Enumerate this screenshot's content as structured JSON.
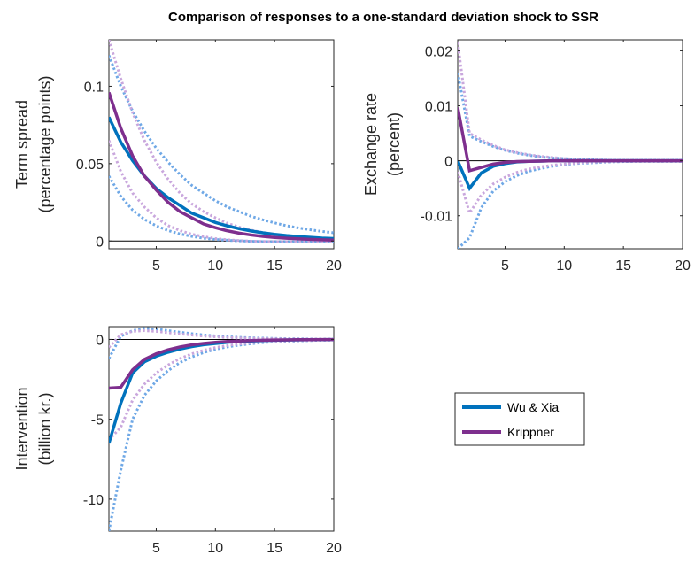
{
  "figure_title": "Comparison of responses to a one-standard deviation shock to SSR",
  "legend": [
    {
      "label": "Wu & Xia",
      "color": "#0072BD"
    },
    {
      "label": "Krippner",
      "color": "#7E2F8E"
    }
  ],
  "chart_data": [
    {
      "type": "line",
      "ylabel": [
        "Term spread",
        "(percentage points)"
      ],
      "xlim": [
        1,
        20
      ],
      "ylim": [
        -0.005,
        0.13
      ],
      "xticks": [
        5,
        10,
        15,
        20
      ],
      "yticks": [
        0,
        0.05,
        0.1
      ],
      "ytick_labels": [
        "0",
        "0.05",
        "0.1"
      ],
      "zero_line": true,
      "x": [
        1,
        2,
        3,
        4,
        5,
        6,
        7,
        8,
        9,
        10,
        11,
        12,
        13,
        14,
        15,
        16,
        17,
        18,
        19,
        20
      ],
      "series": [
        {
          "name": "Wu & Xia",
          "style": "solid",
          "color": "#0072BD",
          "values": [
            0.08,
            0.064,
            0.052,
            0.042,
            0.034,
            0.028,
            0.023,
            0.018,
            0.015,
            0.012,
            0.0098,
            0.008,
            0.0065,
            0.0053,
            0.0043,
            0.0035,
            0.0029,
            0.0024,
            0.0019,
            0.0016
          ]
        },
        {
          "name": "Krippner",
          "style": "solid",
          "color": "#7E2F8E",
          "values": [
            0.096,
            0.073,
            0.055,
            0.042,
            0.033,
            0.025,
            0.019,
            0.015,
            0.011,
            0.0086,
            0.0066,
            0.0051,
            0.0039,
            0.003,
            0.0023,
            0.0018,
            0.0014,
            0.0011,
            0.0008,
            0.0006
          ]
        },
        {
          "style": "dotted",
          "color": "#6FA8E6",
          "values": [
            0.12,
            0.1,
            0.084,
            0.071,
            0.06,
            0.051,
            0.043,
            0.036,
            0.031,
            0.026,
            0.022,
            0.019,
            0.016,
            0.0137,
            0.0117,
            0.0099,
            0.0085,
            0.0073,
            0.0062,
            0.0053
          ]
        },
        {
          "style": "dotted",
          "color": "#6FA8E6",
          "values": [
            0.042,
            0.029,
            0.02,
            0.014,
            0.0098,
            0.0068,
            0.0046,
            0.003,
            0.0018,
            0.001,
            0.0005,
            0.0001,
            -0.0002,
            -0.0004,
            -0.0005,
            -0.0005,
            -0.0005,
            -0.0005,
            -0.0005,
            -0.0005
          ]
        },
        {
          "style": "dotted",
          "color": "#C9A7DD",
          "values": [
            0.13,
            0.105,
            0.083,
            0.065,
            0.051,
            0.04,
            0.031,
            0.024,
            0.019,
            0.015,
            0.0115,
            0.009,
            0.007,
            0.0055,
            0.0043,
            0.0034,
            0.0027,
            0.0021,
            0.0017,
            0.0013
          ]
        },
        {
          "style": "dotted",
          "color": "#C9A7DD",
          "values": [
            0.065,
            0.045,
            0.031,
            0.022,
            0.015,
            0.01,
            0.0068,
            0.0044,
            0.0028,
            0.0016,
            0.0008,
            0.0003,
            -0.0001,
            -0.0003,
            -0.0004,
            -0.0004,
            -0.0004,
            -0.0004,
            -0.0004,
            -0.0004
          ]
        }
      ]
    },
    {
      "type": "line",
      "ylabel": [
        "Exchange rate",
        "(percent)"
      ],
      "xlim": [
        1,
        20
      ],
      "ylim": [
        -0.016,
        0.022
      ],
      "xticks": [
        5,
        10,
        15,
        20
      ],
      "yticks": [
        -0.01,
        0,
        0.01,
        0.02
      ],
      "ytick_labels": [
        "-0.01",
        "0",
        "0.01",
        "0.02"
      ],
      "zero_line": true,
      "x": [
        1,
        2,
        3,
        4,
        5,
        6,
        7,
        8,
        9,
        10,
        11,
        12,
        13,
        14,
        15,
        16,
        17,
        18,
        19,
        20
      ],
      "series": [
        {
          "name": "Wu & Xia",
          "style": "solid",
          "color": "#0072BD",
          "values": [
            0,
            -0.005,
            -0.0022,
            -0.001,
            -0.0005,
            -0.0002,
            -0.0001,
            -5e-05,
            0,
            0,
            0,
            0,
            0,
            0,
            0,
            0,
            0,
            0,
            0,
            0
          ]
        },
        {
          "name": "Krippner",
          "style": "solid",
          "color": "#7E2F8E",
          "values": [
            0.0097,
            -0.0018,
            -0.0012,
            -0.0006,
            -0.0003,
            -0.00015,
            -0.0001,
            -5e-05,
            0,
            0,
            0,
            0,
            0,
            0,
            0,
            0,
            0,
            0,
            0,
            0
          ]
        },
        {
          "style": "dotted",
          "color": "#6FA8E6",
          "values": [
            0.016,
            0.0045,
            0.0035,
            0.0026,
            0.0019,
            0.0014,
            0.001,
            0.0007,
            0.0005,
            0.0004,
            0.0003,
            0.0002,
            0.00015,
            0.0001,
            0.0001,
            0.0001,
            0.0001,
            0.0001,
            0.0001,
            0.0001
          ]
        },
        {
          "style": "dotted",
          "color": "#6FA8E6",
          "values": [
            -0.016,
            -0.014,
            -0.0085,
            -0.0055,
            -0.0038,
            -0.0027,
            -0.0019,
            -0.0014,
            -0.001,
            -0.0007,
            -0.0005,
            -0.0004,
            -0.0003,
            -0.0002,
            -0.00015,
            -0.0001,
            -0.0001,
            -0.0001,
            -0.0001,
            -0.0001
          ]
        },
        {
          "style": "dotted",
          "color": "#C9A7DD",
          "values": [
            0.0215,
            0.005,
            0.0038,
            0.0028,
            0.002,
            0.0015,
            0.0011,
            0.0008,
            0.0006,
            0.0004,
            0.0003,
            0.0002,
            0.00015,
            0.0001,
            0.0001,
            0.0001,
            0.0001,
            0.0001,
            0.0001,
            0.0001
          ]
        },
        {
          "style": "dotted",
          "color": "#C9A7DD",
          "values": [
            -0.002,
            -0.0095,
            -0.0062,
            -0.0042,
            -0.003,
            -0.0021,
            -0.0015,
            -0.0011,
            -0.0008,
            -0.0006,
            -0.0004,
            -0.0003,
            -0.0002,
            -0.00015,
            -0.0001,
            -0.0001,
            -0.0001,
            -0.0001,
            -0.0001,
            -0.0001
          ]
        }
      ]
    },
    {
      "type": "line",
      "ylabel": [
        "Intervention",
        "(billion kr.)"
      ],
      "xlim": [
        1,
        20
      ],
      "ylim": [
        -12,
        0.8
      ],
      "xticks": [
        5,
        10,
        15,
        20
      ],
      "yticks": [
        -10,
        -5,
        0
      ],
      "ytick_labels": [
        "-10",
        "-5",
        "0"
      ],
      "zero_line": true,
      "x": [
        1,
        2,
        3,
        4,
        5,
        6,
        7,
        8,
        9,
        10,
        11,
        12,
        13,
        14,
        15,
        16,
        17,
        18,
        19,
        20
      ],
      "series": [
        {
          "name": "Wu & Xia",
          "style": "solid",
          "color": "#0072BD",
          "values": [
            -6.5,
            -4.0,
            -2.1,
            -1.4,
            -1.05,
            -0.8,
            -0.6,
            -0.45,
            -0.33,
            -0.25,
            -0.18,
            -0.13,
            -0.1,
            -0.07,
            -0.05,
            -0.04,
            -0.03,
            -0.02,
            -0.015,
            -0.01
          ]
        },
        {
          "name": "Krippner",
          "style": "solid",
          "color": "#7E2F8E",
          "values": [
            -3.05,
            -3.0,
            -1.9,
            -1.25,
            -0.9,
            -0.65,
            -0.47,
            -0.34,
            -0.25,
            -0.18,
            -0.13,
            -0.1,
            -0.07,
            -0.05,
            -0.04,
            -0.03,
            -0.02,
            -0.015,
            -0.01,
            -0.01
          ]
        },
        {
          "style": "dotted",
          "color": "#6FA8E6",
          "values": [
            -1.2,
            0.2,
            0.55,
            0.7,
            0.65,
            0.55,
            0.45,
            0.36,
            0.28,
            0.22,
            0.17,
            0.13,
            0.1,
            0.08,
            0.06,
            0.05,
            0.04,
            0.03,
            0.02,
            0.02
          ]
        },
        {
          "style": "dotted",
          "color": "#6FA8E6",
          "values": [
            -12,
            -8.2,
            -5.0,
            -3.5,
            -2.6,
            -1.95,
            -1.45,
            -1.1,
            -0.82,
            -0.62,
            -0.47,
            -0.36,
            -0.27,
            -0.2,
            -0.15,
            -0.12,
            -0.09,
            -0.07,
            -0.05,
            -0.04
          ]
        },
        {
          "style": "dotted",
          "color": "#C9A7DD",
          "values": [
            -0.5,
            0.3,
            0.5,
            0.55,
            0.5,
            0.42,
            0.34,
            0.27,
            0.21,
            0.16,
            0.12,
            0.09,
            0.07,
            0.05,
            0.04,
            0.03,
            0.02,
            0.02,
            0.01,
            0.01
          ]
        },
        {
          "style": "dotted",
          "color": "#C9A7DD",
          "values": [
            -6.3,
            -5.5,
            -3.8,
            -2.8,
            -2.1,
            -1.6,
            -1.2,
            -0.9,
            -0.68,
            -0.51,
            -0.38,
            -0.29,
            -0.22,
            -0.16,
            -0.12,
            -0.09,
            -0.07,
            -0.05,
            -0.04,
            -0.03
          ]
        }
      ]
    }
  ]
}
